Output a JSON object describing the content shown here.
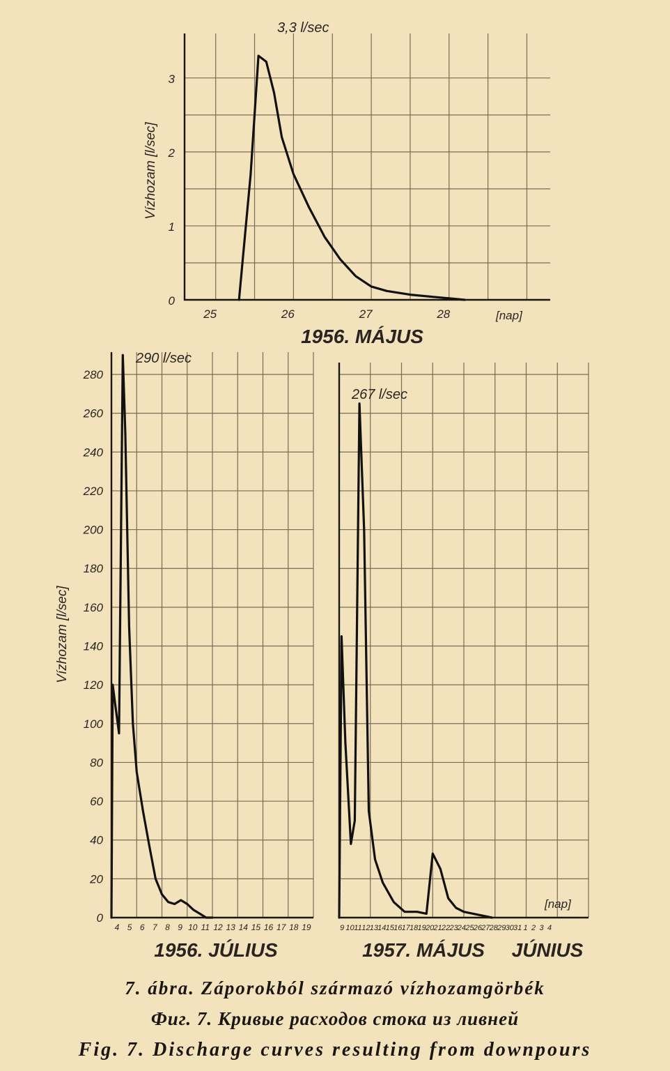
{
  "chart_data": [
    {
      "type": "line",
      "title": "1956. MÁJUS",
      "ylabel": "Vízhozam [l/sec]",
      "x_unit_label": "[nap]",
      "peak_label": "3,3 l/sec",
      "x_tick_labels": [
        "25",
        "26",
        "27",
        "28"
      ],
      "y_tick_labels": [
        "0",
        "1",
        "2",
        "3"
      ],
      "ylim": [
        0,
        3.3
      ],
      "xlim": [
        24.6,
        29.3
      ],
      "grid": true,
      "series": [
        {
          "x": [
            25.3,
            25.45,
            25.55,
            25.65,
            25.75,
            25.85,
            26.0,
            26.2,
            26.4,
            26.6,
            26.8,
            27.0,
            27.2,
            27.5,
            27.8,
            28.0,
            28.2
          ],
          "y": [
            0,
            1.7,
            3.3,
            3.22,
            2.8,
            2.2,
            1.7,
            1.25,
            0.85,
            0.55,
            0.32,
            0.18,
            0.12,
            0.07,
            0.04,
            0.02,
            0
          ]
        }
      ]
    },
    {
      "type": "line",
      "title": "1956. JÚLIUS",
      "ylabel": "Vízhozam [l/sec]",
      "peak_label": "290 l/sec",
      "x_tick_labels": [
        "4",
        "5",
        "6",
        "7",
        "8",
        "9",
        "10",
        "11",
        "12",
        "13",
        "14",
        "15",
        "16",
        "17",
        "18",
        "19"
      ],
      "y_tick_labels": [
        "0",
        "20",
        "40",
        "60",
        "80",
        "100",
        "120",
        "140",
        "160",
        "180",
        "200",
        "220",
        "240",
        "260",
        "280"
      ],
      "ylim": [
        0,
        290
      ],
      "xlim": [
        0,
        16
      ],
      "grid": true,
      "series": [
        {
          "x": [
            0,
            0.1,
            0.3,
            0.6,
            0.9,
            1.1,
            1.4,
            1.7,
            2.0,
            2.5,
            3.0,
            3.5,
            4.0,
            4.5,
            5.0,
            5.5,
            6.0,
            6.5,
            7.0,
            7.5,
            8.0
          ],
          "y": [
            0,
            120,
            110,
            95,
            290,
            250,
            150,
            100,
            75,
            55,
            37,
            20,
            12,
            8,
            7,
            9,
            7,
            4,
            2,
            0,
            0
          ]
        }
      ]
    },
    {
      "type": "line",
      "title": "1957. MÁJUS",
      "secondary_title": "JÚNIUS",
      "x_unit_label": "[nap]",
      "peak_label": "267 l/sec",
      "x_tick_labels": [
        "9",
        "10",
        "11",
        "12",
        "13",
        "14",
        "15",
        "16",
        "17",
        "18",
        "19",
        "20",
        "21",
        "22",
        "23",
        "24",
        "25",
        "26",
        "27",
        "28",
        "29",
        "30",
        "31",
        "1",
        "2",
        "3",
        "4"
      ],
      "xlim": [
        0,
        16
      ],
      "ylim": [
        0,
        290
      ],
      "grid": true,
      "series": [
        {
          "x": [
            0,
            0.15,
            0.4,
            0.75,
            1.0,
            1.3,
            1.6,
            1.9,
            2.3,
            2.8,
            3.5,
            4.2,
            5.0,
            5.6,
            6.0,
            6.5,
            7.0,
            7.5,
            8.0,
            8.6,
            9.2,
            9.8
          ],
          "y": [
            0,
            145,
            90,
            38,
            50,
            265,
            200,
            55,
            30,
            18,
            8,
            3,
            3,
            2,
            33,
            25,
            10,
            5,
            3,
            2,
            1,
            0
          ]
        }
      ]
    }
  ],
  "caption": {
    "hu": "7. ábra. Záporokból származó vízhozamgörbék",
    "ru": "Фиг. 7. Кривые расходов стока из ливней",
    "en": "Fig. 7. Discharge curves resulting from downpours"
  }
}
